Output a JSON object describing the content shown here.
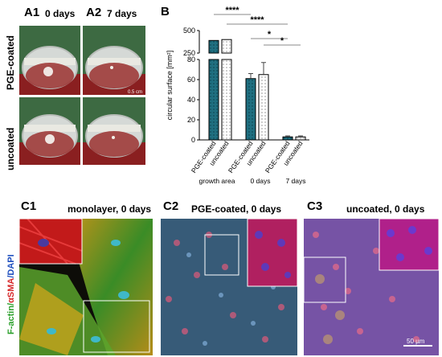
{
  "panel_a": {
    "label_a1": "A1",
    "label_a2": "A2",
    "time_a1": "0 days",
    "time_a2": "7 days",
    "row_top": "PGE-coated",
    "row_bottom": "uncoated",
    "scale_text": "0.5 cm"
  },
  "panel_b": {
    "label": "B",
    "significance": [
      "****",
      "****",
      "*",
      "*"
    ]
  },
  "chart_data": {
    "type": "bar",
    "ylabel": "circular surface [mm²]",
    "y_ticks_upper": [
      "500",
      "250"
    ],
    "y_ticks_lower": [
      "80",
      "60",
      "40",
      "20",
      "0"
    ],
    "y_break": true,
    "ylim_lower": [
      0,
      80
    ],
    "ylim_upper": [
      250,
      500
    ],
    "groups": [
      "growth area",
      "0 days",
      "7 days"
    ],
    "categories": [
      "PGE-coated",
      "uncoated",
      "PGE-coated",
      "uncoated",
      "PGE-coated",
      "uncoated"
    ],
    "values": [
      390,
      400,
      61,
      65,
      3,
      3
    ],
    "errors": [
      0,
      0,
      5,
      12,
      1,
      1
    ],
    "colors": {
      "PGE-coated": "#1f6f80",
      "uncoated": "#ffffff"
    }
  },
  "panel_c": {
    "label_c1": "C1",
    "label_c2": "C2",
    "label_c3": "C3",
    "title_c1": "monolayer, 0 days",
    "title_c2": "PGE-coated, 0 days",
    "title_c3": "uncoated, 0 days",
    "stain_part1": "F-actin/",
    "stain_part2": "αSMA",
    "stain_part3": "/DAPI",
    "scale_text": "50 µm"
  }
}
